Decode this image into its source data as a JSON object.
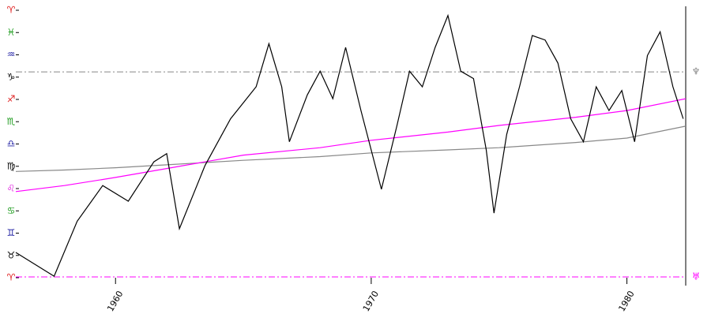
{
  "chart_data": {
    "type": "line",
    "xlim": [
      1956.1,
      1982.3
    ],
    "xticks": [
      1960,
      1970,
      1980
    ],
    "ylim": [
      0,
      360
    ],
    "yticks": [
      {
        "value": 0,
        "label": "♈"
      },
      {
        "value": 30,
        "label": "♉"
      },
      {
        "value": 60,
        "label": "♊"
      },
      {
        "value": 90,
        "label": "♋"
      },
      {
        "value": 120,
        "label": "♌"
      },
      {
        "value": 150,
        "label": "♍"
      },
      {
        "value": 180,
        "label": "♎"
      },
      {
        "value": 210,
        "label": "♏"
      },
      {
        "value": 240,
        "label": "♐"
      },
      {
        "value": 270,
        "label": "♑"
      },
      {
        "value": 300,
        "label": "♒"
      },
      {
        "value": 330,
        "label": "♓"
      },
      {
        "value": 360,
        "label": "♈"
      }
    ],
    "ytick_colors": [
      "#e02020",
      "#000000",
      "#1a1aa0",
      "#1a9a1a",
      "#e020e0",
      "#000000",
      "#1a1aa0",
      "#1a9a1a",
      "#e02020",
      "#000000",
      "#1a1aa0",
      "#1a9a1a",
      "#e02020"
    ],
    "series": [
      {
        "color": "#888888",
        "x": [
          1956.1,
          1958,
          1960,
          1962,
          1965,
          1968,
          1970,
          1973,
          1975,
          1978,
          1980,
          1982.3
        ],
        "values": [
          143,
          145,
          148,
          152,
          158,
          163,
          168,
          172,
          175,
          182,
          188,
          204
        ]
      },
      {
        "color": "#ff00ff",
        "x": [
          1956.1,
          1958,
          1960,
          1962,
          1965,
          1968,
          1970,
          1973,
          1975,
          1978,
          1980,
          1982.3
        ],
        "values": [
          116,
          124,
          135,
          147,
          165,
          175,
          185,
          196,
          205,
          216,
          225,
          241
        ]
      },
      {
        "color": "#000000",
        "x": [
          1956.1,
          1957.6,
          1958.5,
          1959.5,
          1960.5,
          1961.5,
          1962.0,
          1962.5,
          1963.5,
          1964.5,
          1965.5,
          1966.0,
          1966.5,
          1966.8,
          1967.5,
          1968.0,
          1968.5,
          1969.0,
          1969.6,
          1970.4,
          1971.0,
          1971.5,
          1972.0,
          1972.5,
          1973.0,
          1973.5,
          1974.0,
          1974.5,
          1974.8,
          1975.3,
          1975.8,
          1976.3,
          1976.8,
          1977.3,
          1977.8,
          1978.3,
          1978.8,
          1979.3,
          1979.8,
          1980.3,
          1980.8,
          1981.3,
          1981.8,
          1982.2
        ],
        "values": [
          34,
          2,
          76,
          124,
          103,
          156,
          167,
          66,
          151,
          214,
          257,
          315,
          257,
          183,
          246,
          278,
          241,
          310,
          225,
          119,
          204,
          278,
          257,
          310,
          353,
          278,
          268,
          172,
          87,
          193,
          257,
          326,
          320,
          289,
          214,
          183,
          257,
          225,
          252,
          183,
          299,
          331,
          257,
          214
        ]
      }
    ],
    "reference_lines": [
      {
        "name": "♆",
        "value": 277,
        "color": "#888888"
      },
      {
        "name": "♅",
        "value": 1,
        "color": "#ff00ff"
      }
    ]
  }
}
